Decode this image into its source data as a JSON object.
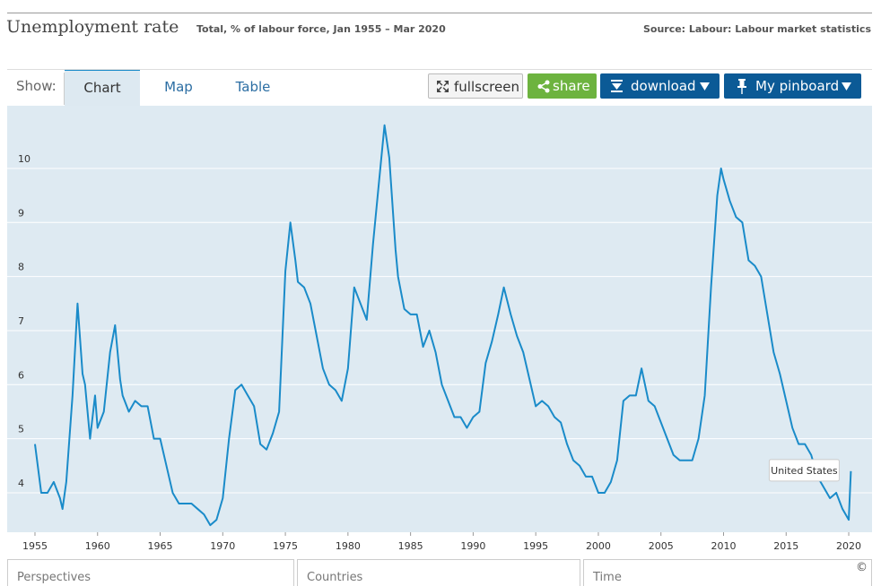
{
  "header": {
    "title": "Unemployment rate",
    "subtitle": "Total, % of labour force, Jan 1955 – Mar 2020",
    "source": "Source: Labour: Labour market statistics"
  },
  "toolbar": {
    "show_label": "Show:",
    "tabs": [
      "Chart",
      "Map",
      "Table"
    ],
    "buttons": [
      "fullscreen",
      "share",
      "download",
      "My pinboard"
    ]
  },
  "footer": {
    "panels": [
      "Perspectives",
      "Countries",
      "Time"
    ],
    "copyright": "©"
  },
  "chart_data": {
    "type": "line",
    "x": [
      1955.0,
      1955.5,
      1956.0,
      1956.5,
      1957.0,
      1957.2,
      1957.5,
      1958.0,
      1958.4,
      1958.8,
      1959.0,
      1959.4,
      1959.8,
      1960.0,
      1960.5,
      1961.0,
      1961.4,
      1961.8,
      1962.0,
      1962.5,
      1963.0,
      1963.5,
      1964.0,
      1964.5,
      1965.0,
      1965.5,
      1966.0,
      1966.5,
      1967.0,
      1967.5,
      1968.0,
      1968.5,
      1969.0,
      1969.5,
      1970.0,
      1970.5,
      1971.0,
      1971.5,
      1972.0,
      1972.5,
      1973.0,
      1973.5,
      1974.0,
      1974.5,
      1975.0,
      1975.4,
      1975.8,
      1976.0,
      1976.5,
      1977.0,
      1977.5,
      1978.0,
      1978.5,
      1979.0,
      1979.5,
      1980.0,
      1980.5,
      1981.0,
      1981.5,
      1982.0,
      1982.5,
      1982.92,
      1983.3,
      1983.8,
      1984.0,
      1984.5,
      1985.0,
      1985.5,
      1986.0,
      1986.5,
      1987.0,
      1987.5,
      1988.0,
      1988.5,
      1989.0,
      1989.5,
      1990.0,
      1990.5,
      1991.0,
      1991.5,
      1992.0,
      1992.45,
      1993.0,
      1993.5,
      1994.0,
      1994.5,
      1995.0,
      1995.5,
      1996.0,
      1996.5,
      1997.0,
      1997.5,
      1998.0,
      1998.5,
      1999.0,
      1999.5,
      2000.0,
      2000.5,
      2001.0,
      2001.5,
      2002.0,
      2002.5,
      2003.0,
      2003.45,
      2004.0,
      2004.5,
      2005.0,
      2005.5,
      2006.0,
      2006.5,
      2007.0,
      2007.5,
      2008.0,
      2008.5,
      2009.0,
      2009.5,
      2009.8,
      2010.0,
      2010.5,
      2011.0,
      2011.5,
      2012.0,
      2012.5,
      2013.0,
      2013.5,
      2014.0,
      2014.5,
      2015.0,
      2015.5,
      2016.0,
      2016.5,
      2017.0,
      2017.5,
      2018.0,
      2018.5,
      2019.0,
      2019.5,
      2020.0,
      2020.17
    ],
    "series": [
      {
        "name": "United States",
        "color": "#1a8bc9",
        "values": [
          4.9,
          4.0,
          4.0,
          4.2,
          3.9,
          3.7,
          4.2,
          5.8,
          7.5,
          6.2,
          6.0,
          5.0,
          5.8,
          5.2,
          5.5,
          6.6,
          7.1,
          6.1,
          5.8,
          5.5,
          5.7,
          5.6,
          5.6,
          5.0,
          5.0,
          4.5,
          4.0,
          3.8,
          3.8,
          3.8,
          3.7,
          3.6,
          3.4,
          3.5,
          3.9,
          5.0,
          5.9,
          6.0,
          5.8,
          5.6,
          4.9,
          4.8,
          5.1,
          5.5,
          8.1,
          9.0,
          8.3,
          7.9,
          7.8,
          7.5,
          6.9,
          6.3,
          6.0,
          5.9,
          5.7,
          6.3,
          7.8,
          7.5,
          7.2,
          8.6,
          9.8,
          10.8,
          10.2,
          8.5,
          8.0,
          7.4,
          7.3,
          7.3,
          6.7,
          7.0,
          6.6,
          6.0,
          5.7,
          5.4,
          5.4,
          5.2,
          5.4,
          5.5,
          6.4,
          6.8,
          7.3,
          7.8,
          7.3,
          6.9,
          6.6,
          6.1,
          5.6,
          5.7,
          5.6,
          5.4,
          5.3,
          4.9,
          4.6,
          4.5,
          4.3,
          4.3,
          4.0,
          4.0,
          4.2,
          4.6,
          5.7,
          5.8,
          5.8,
          6.3,
          5.7,
          5.6,
          5.3,
          5.0,
          4.7,
          4.6,
          4.6,
          4.6,
          5.0,
          5.8,
          7.8,
          9.5,
          10.0,
          9.8,
          9.4,
          9.1,
          9.0,
          8.3,
          8.2,
          8.0,
          7.3,
          6.6,
          6.2,
          5.7,
          5.2,
          4.9,
          4.9,
          4.7,
          4.3,
          4.1,
          3.9,
          4.0,
          3.7,
          3.5,
          4.4
        ]
      }
    ],
    "xlim": [
      1952.78,
      2021.86
    ],
    "xticks": [
      1955,
      1960,
      1965,
      1970,
      1975,
      1980,
      1985,
      1990,
      1995,
      2000,
      2005,
      2010,
      2015,
      2020
    ],
    "ylim": [
      3.27,
      11.16
    ],
    "yticks": [
      4,
      5,
      6,
      7,
      8,
      9,
      10
    ],
    "grid": true
  }
}
